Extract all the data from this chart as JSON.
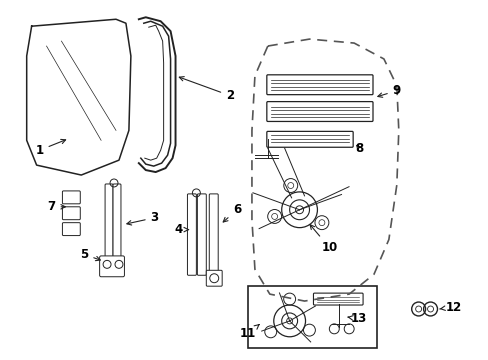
{
  "bg_color": "#ffffff",
  "fig_width": 4.89,
  "fig_height": 3.6,
  "dpi": 100,
  "part_color": "#222222",
  "dashed_color": "#555555",
  "arrow_color": "#222222",
  "label_fontsize": 8.5
}
